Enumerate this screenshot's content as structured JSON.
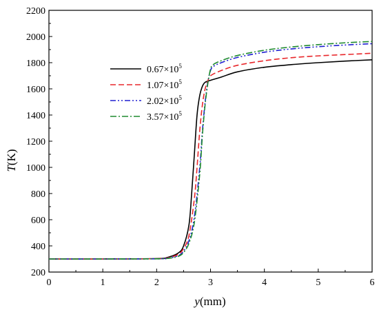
{
  "chart_data": {
    "type": "line",
    "title": "",
    "xlabel": {
      "var": "y",
      "unit": "(mm)"
    },
    "ylabel": {
      "var": "T",
      "unit": "(K)"
    },
    "xlim": [
      0,
      6
    ],
    "ylim": [
      200,
      2200
    ],
    "xticks": [
      0,
      1,
      2,
      3,
      4,
      5,
      6
    ],
    "yticks": [
      200,
      400,
      600,
      800,
      1000,
      1200,
      1400,
      1600,
      1800,
      2000,
      2200
    ],
    "grid": false,
    "legend_position": "upper-left-center",
    "series": [
      {
        "name": "0.67×10",
        "name_sup": "5",
        "color": "#000000",
        "dash": "solid",
        "x": [
          0,
          1,
          2,
          2.2,
          2.4,
          2.5,
          2.6,
          2.65,
          2.7,
          2.75,
          2.8,
          2.85,
          2.9,
          3.0,
          3.2,
          3.5,
          4,
          4.5,
          5,
          5.5,
          6
        ],
        "y": [
          300,
          300,
          303,
          312,
          345,
          400,
          560,
          800,
          1100,
          1400,
          1550,
          1620,
          1650,
          1665,
          1690,
          1730,
          1765,
          1785,
          1800,
          1812,
          1822
        ]
      },
      {
        "name": "1.07×10",
        "name_sup": "5",
        "color": "#e8262a",
        "dash": "dashed",
        "x": [
          0,
          1,
          2,
          2.2,
          2.4,
          2.5,
          2.6,
          2.7,
          2.75,
          2.8,
          2.85,
          2.9,
          2.95,
          3.0,
          3.2,
          3.5,
          4,
          4.5,
          5,
          5.5,
          6
        ],
        "y": [
          300,
          300,
          302,
          308,
          335,
          380,
          480,
          760,
          1000,
          1280,
          1480,
          1600,
          1660,
          1700,
          1740,
          1780,
          1815,
          1838,
          1852,
          1862,
          1872
        ]
      },
      {
        "name": "2.02×10",
        "name_sup": "5",
        "color": "#1f1fd1",
        "dash": "dashdotdot",
        "x": [
          0,
          1,
          2,
          2.2,
          2.4,
          2.5,
          2.6,
          2.7,
          2.8,
          2.85,
          2.9,
          2.95,
          3.0,
          3.05,
          3.2,
          3.5,
          4,
          4.5,
          5,
          5.5,
          6
        ],
        "y": [
          300,
          300,
          301,
          305,
          325,
          360,
          440,
          620,
          1000,
          1280,
          1500,
          1650,
          1740,
          1770,
          1800,
          1840,
          1880,
          1905,
          1922,
          1935,
          1945
        ]
      },
      {
        "name": "3.57×10",
        "name_sup": "5",
        "color": "#1e8a2e",
        "dash": "dashdot",
        "x": [
          0,
          1,
          2,
          2.2,
          2.4,
          2.5,
          2.6,
          2.7,
          2.8,
          2.85,
          2.9,
          2.95,
          3.0,
          3.05,
          3.2,
          3.5,
          4,
          4.5,
          5,
          5.5,
          6
        ],
        "y": [
          300,
          300,
          301,
          304,
          320,
          350,
          420,
          580,
          950,
          1250,
          1480,
          1640,
          1750,
          1785,
          1815,
          1855,
          1895,
          1920,
          1938,
          1952,
          1962
        ]
      }
    ]
  }
}
